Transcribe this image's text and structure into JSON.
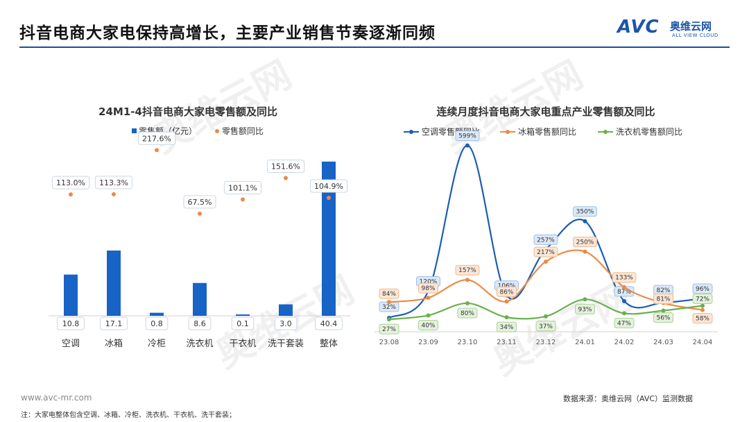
{
  "header": {
    "title": "抖音电商大家电保持高增长，主要产业销售节奏逐渐同频",
    "logo_mark": "AVC",
    "logo_cn": "奥维云网",
    "logo_en": "ALL VIEW CLOUD"
  },
  "footer": {
    "url": "www.avc-mr.com",
    "note": "注：大家电整体包含空调、冰箱、冷柜、洗衣机、干衣机、洗干套装；",
    "source": "数据来源：奥维云网（AVC）监测数据"
  },
  "watermark_text": "奥维云网",
  "colors": {
    "bar": "#1763c6",
    "dot": "#ec8a45",
    "line_ac": "#1a5db4",
    "line_fridge": "#ec8a45",
    "line_washer": "#6ab04c",
    "header_rule": "#1a4f9c"
  },
  "chart_data": [
    {
      "type": "bar",
      "title": "24M1-4抖音电商大家电零售额及同比",
      "categories": [
        "空调",
        "冰箱",
        "冷柜",
        "洗衣机",
        "干衣机",
        "洗干套装",
        "整体"
      ],
      "series": [
        {
          "name": "零售额（亿元）",
          "values": [
            10.8,
            17.1,
            0.8,
            8.6,
            0.1,
            3.0,
            40.4
          ],
          "labels": [
            "10.8",
            "17.1",
            "0.8",
            "8.6",
            "0.1",
            "3.0",
            "40.4"
          ]
        },
        {
          "name": "零售额同比",
          "kind": "scatter",
          "values": [
            113.0,
            113.3,
            217.6,
            67.5,
            101.1,
            151.6,
            104.9
          ],
          "labels": [
            "113.0%",
            "113.3%",
            "217.6%",
            "67.5%",
            "101.1%",
            "151.6%",
            "104.9%"
          ]
        }
      ],
      "legend": "top-center"
    },
    {
      "type": "line",
      "title": "连续月度抖音电商大家电重点产业零售额及同比",
      "x": [
        "23.08",
        "23.09",
        "23.10",
        "23.11",
        "23.12",
        "24.01",
        "24.02",
        "24.03",
        "24.04"
      ],
      "series": [
        {
          "name": "空调零售额同比",
          "values": [
            32,
            120,
            599,
            106,
            257,
            350,
            87,
            82,
            96
          ],
          "labels": [
            "32%",
            "120%",
            "599%",
            "106%",
            "257%",
            "350%",
            "87%",
            "82%",
            "96%"
          ]
        },
        {
          "name": "冰箱零售额同比",
          "values": [
            84,
            98,
            157,
            86,
            217,
            250,
            133,
            81,
            58
          ],
          "labels": [
            "84%",
            "98%",
            "157%",
            "86%",
            "217%",
            "250%",
            "133%",
            "81%",
            "58%"
          ]
        },
        {
          "name": "洗衣机零售额同比",
          "values": [
            27,
            40,
            80,
            34,
            37,
            93,
            47,
            56,
            72
          ],
          "labels": [
            "27%",
            "40%",
            "80%",
            "34%",
            "37%",
            "93%",
            "47%",
            "56%",
            "72%"
          ]
        }
      ],
      "legend": "top-center"
    }
  ]
}
